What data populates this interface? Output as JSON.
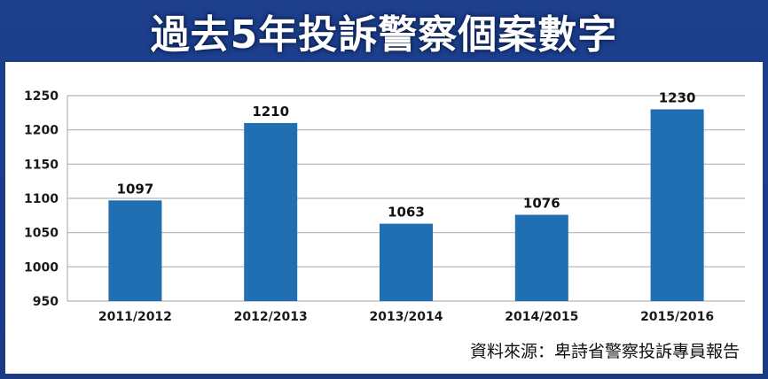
{
  "title": "過去5年投訴警察個案數字",
  "source": "資料來源：卑詩省警察投訴專員報告",
  "colors": {
    "frame": "#1d3f8c",
    "bar": "#1f6fb2",
    "grid": "#b5b5b5"
  },
  "chart_data": {
    "type": "bar",
    "title": "",
    "xlabel": "",
    "ylabel": "",
    "categories": [
      "2011/2012",
      "2012/2013",
      "2013/2014",
      "2014/2015",
      "2015/2016"
    ],
    "values": [
      1097,
      1210,
      1063,
      1076,
      1230
    ],
    "ylim": [
      950,
      1250
    ],
    "yticks": [
      950,
      1000,
      1050,
      1100,
      1150,
      1200,
      1250
    ],
    "grid": true,
    "data_labels": true
  }
}
